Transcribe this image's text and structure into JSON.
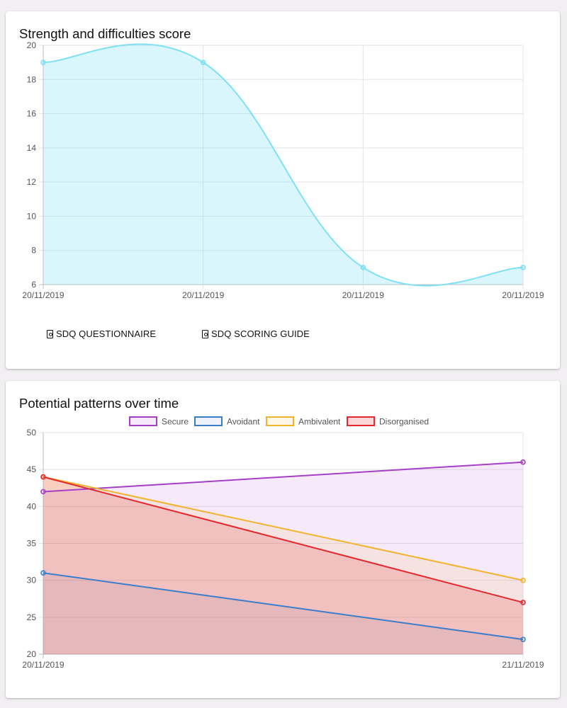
{
  "sdq": {
    "title": "Strength and difficulties score",
    "links": [
      {
        "label": "SDQ QUESTIONNAIRE",
        "icon": "pdf-file-icon"
      },
      {
        "label": "SDQ SCORING GUIDE",
        "icon": "pdf-file-icon"
      }
    ]
  },
  "patterns": {
    "title": "Potential patterns over time"
  },
  "chart_data": [
    {
      "type": "area",
      "title": "Strength and difficulties score",
      "categories": [
        "20/11/2019",
        "20/11/2019",
        "20/11/2019",
        "20/11/2019"
      ],
      "series": [
        {
          "values": [
            19,
            19,
            7,
            7
          ],
          "color": "#7fe0f5",
          "fill": "rgba(127,224,245,0.30)"
        }
      ],
      "ylim": [
        6,
        20
      ],
      "yticks": [
        6,
        8,
        10,
        12,
        14,
        16,
        18,
        20
      ],
      "grid": true,
      "curve": "smooth"
    },
    {
      "type": "area",
      "title": "Potential patterns over time",
      "categories": [
        "20/11/2019",
        "21/11/2019"
      ],
      "series": [
        {
          "name": "Secure",
          "values": [
            42,
            46
          ],
          "color": "#a53fc8",
          "fill": "rgba(196,122,226,0.17)"
        },
        {
          "name": "Avoidant",
          "values": [
            31,
            22
          ],
          "color": "#3a7dcc",
          "fill": "rgba(58,125,204,0.10)"
        },
        {
          "name": "Ambivalent",
          "values": [
            44,
            30
          ],
          "color": "#f2b32e",
          "fill": "rgba(246,196,90,0.15)"
        },
        {
          "name": "Disorganised",
          "values": [
            44,
            27
          ],
          "color": "#e3282e",
          "fill": "rgba(232,70,70,0.22)"
        }
      ],
      "ylim": [
        20,
        50
      ],
      "yticks": [
        20,
        25,
        30,
        35,
        40,
        45,
        50
      ],
      "grid": true,
      "legend": "top",
      "curve": "linear"
    }
  ]
}
